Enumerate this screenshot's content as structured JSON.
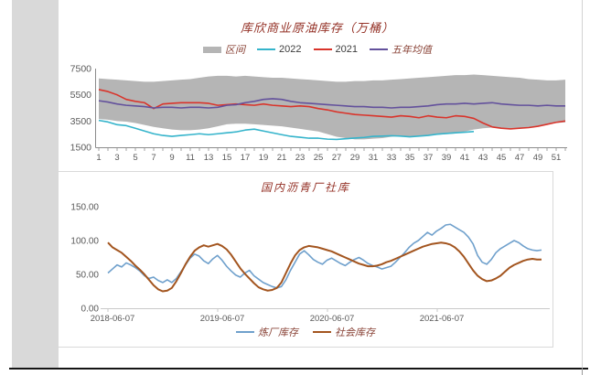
{
  "decor": {
    "background": "#ffffff",
    "left_panel_color": "#d9d9d9",
    "divider_color": "#141414",
    "frame_border_color": "#d9d9d9"
  },
  "chart_data": [
    {
      "type": "line",
      "title": "库欣商业原油库存（万桶）",
      "legend_position": "top",
      "x_unit": "week",
      "x_weeks": 52,
      "x_tick_labels": [
        1,
        3,
        5,
        7,
        9,
        11,
        13,
        15,
        17,
        19,
        21,
        23,
        25,
        27,
        29,
        31,
        33,
        35,
        37,
        39,
        41,
        43,
        45,
        47,
        49,
        51
      ],
      "ylim": [
        1500,
        7500
      ],
      "y_ticks": [
        1500,
        3500,
        5500,
        7500
      ],
      "grid": false,
      "series": [
        {
          "name": "区间",
          "type": "band",
          "color": "#b5b5b5",
          "upper": [
            6750,
            6700,
            6650,
            6600,
            6550,
            6500,
            6500,
            6550,
            6600,
            6650,
            6700,
            6800,
            6900,
            6950,
            6950,
            6900,
            6950,
            6900,
            6850,
            6800,
            6800,
            6750,
            6700,
            6650,
            6600,
            6550,
            6500,
            6500,
            6550,
            6550,
            6600,
            6600,
            6650,
            6700,
            6750,
            6800,
            6850,
            6900,
            6950,
            7000,
            7000,
            7050,
            7000,
            6950,
            6900,
            6850,
            6800,
            6700,
            6650,
            6600,
            6600,
            6650
          ],
          "lower": [
            3650,
            3600,
            3500,
            3450,
            3350,
            3200,
            3050,
            2950,
            2850,
            2800,
            2800,
            2850,
            2950,
            3100,
            3250,
            3300,
            3300,
            3250,
            3200,
            3150,
            3100,
            3000,
            2900,
            2800,
            2700,
            2500,
            2300,
            2200,
            2100,
            2100,
            2150,
            2200,
            2300,
            2350,
            2300,
            2350,
            2400,
            2450,
            2500,
            2550,
            2700,
            2850,
            2950,
            3000,
            2950,
            2900,
            2950,
            3000,
            3100,
            3250,
            3350,
            3400
          ]
        },
        {
          "name": "2022",
          "type": "line",
          "color": "#35b4cb",
          "values": [
            3550,
            3430,
            3220,
            3150,
            2950,
            2740,
            2530,
            2400,
            2330,
            2400,
            2460,
            2530,
            2460,
            2530,
            2600,
            2670,
            2810,
            2880,
            2740,
            2600,
            2460,
            2330,
            2260,
            2190,
            2190,
            2120,
            2100,
            2150,
            2200,
            2250,
            2330,
            2350,
            2380,
            2350,
            2300,
            2350,
            2400,
            2500,
            2550,
            2600,
            2650,
            2700
          ]
        },
        {
          "name": "2021",
          "type": "line",
          "color": "#d9342b",
          "values": [
            5900,
            5750,
            5500,
            5150,
            5000,
            4900,
            4450,
            4800,
            4850,
            4900,
            4900,
            4900,
            4850,
            4700,
            4750,
            4800,
            4750,
            4700,
            4800,
            4700,
            4650,
            4600,
            4650,
            4600,
            4450,
            4350,
            4200,
            4100,
            4000,
            3950,
            3900,
            3850,
            3800,
            3900,
            3850,
            3750,
            3900,
            3800,
            3750,
            3900,
            3850,
            3700,
            3350,
            3050,
            2950,
            2900,
            2950,
            3000,
            3100,
            3250,
            3400,
            3500
          ]
        },
        {
          "name": "五年均值",
          "type": "line",
          "color": "#63519c",
          "values": [
            5050,
            4950,
            4800,
            4700,
            4650,
            4600,
            4500,
            4550,
            4550,
            4500,
            4550,
            4550,
            4500,
            4550,
            4700,
            4750,
            4900,
            5000,
            5150,
            5200,
            5150,
            5000,
            4900,
            4850,
            4800,
            4750,
            4700,
            4650,
            4600,
            4600,
            4550,
            4550,
            4500,
            4550,
            4550,
            4600,
            4650,
            4750,
            4800,
            4800,
            4850,
            4800,
            4850,
            4900,
            4800,
            4750,
            4700,
            4700,
            4650,
            4700,
            4650,
            4650
          ]
        }
      ]
    },
    {
      "type": "line",
      "title": "国内沥青厂社库",
      "legend_position": "bottom",
      "x_tick_labels": [
        "2018-06-07",
        "2019-06-07",
        "2020-06-07",
        "2021-06-07"
      ],
      "x_range_years": 3.95,
      "ylim": [
        0,
        150
      ],
      "y_ticks": [
        0,
        50,
        100,
        150
      ],
      "y_tick_labels": [
        "0.00",
        "50.00",
        "100.00",
        "150.00"
      ],
      "grid": false,
      "series": [
        {
          "name": "炼厂库存",
          "type": "line",
          "color": "#6fa0cc",
          "values": [
            52,
            58,
            64,
            61,
            67,
            64,
            60,
            55,
            48,
            44,
            46,
            41,
            38,
            42,
            38,
            44,
            54,
            64,
            74,
            80,
            77,
            70,
            66,
            73,
            78,
            71,
            62,
            55,
            49,
            46,
            52,
            56,
            48,
            43,
            38,
            35,
            32,
            30,
            32,
            42,
            56,
            68,
            80,
            85,
            79,
            72,
            68,
            65,
            71,
            74,
            70,
            66,
            63,
            68,
            72,
            75,
            71,
            66,
            63,
            61,
            58,
            60,
            62,
            68,
            75,
            82,
            90,
            96,
            100,
            106,
            112,
            108,
            114,
            118,
            123,
            124,
            120,
            116,
            112,
            105,
            95,
            78,
            68,
            65,
            72,
            82,
            88,
            92,
            96,
            100,
            97,
            92,
            88,
            86,
            85,
            86
          ]
        },
        {
          "name": "社会库存",
          "type": "line",
          "color": "#a3551f",
          "values": [
            97,
            90,
            86,
            82,
            76,
            70,
            63,
            57,
            50,
            42,
            34,
            28,
            25,
            26,
            30,
            40,
            52,
            65,
            76,
            85,
            90,
            93,
            91,
            93,
            95,
            92,
            87,
            79,
            69,
            59,
            51,
            44,
            37,
            31,
            28,
            26,
            27,
            30,
            38,
            52,
            66,
            78,
            86,
            90,
            92,
            91,
            90,
            88,
            86,
            84,
            81,
            78,
            75,
            72,
            69,
            66,
            64,
            62,
            62,
            63,
            65,
            68,
            70,
            73,
            76,
            79,
            82,
            85,
            88,
            91,
            93,
            95,
            96,
            97,
            96,
            94,
            90,
            84,
            76,
            66,
            56,
            48,
            43,
            40,
            41,
            44,
            48,
            54,
            60,
            64,
            67,
            70,
            72,
            73,
            72,
            72
          ]
        }
      ]
    }
  ]
}
